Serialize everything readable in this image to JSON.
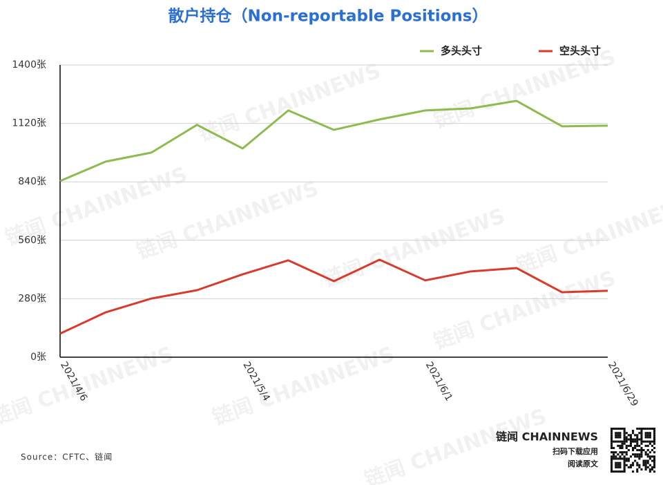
{
  "chart_data": {
    "type": "line",
    "title": "散户持仓（Non-reportable Positions）",
    "categories": [
      "2021/4/6",
      null,
      null,
      null,
      "2021/5/4",
      null,
      null,
      null,
      "2021/6/1",
      null,
      null,
      null,
      "2021/6/29"
    ],
    "series": [
      {
        "name": "多头头寸",
        "color": "#8dbb4f",
        "values": [
          844,
          937,
          980,
          1113,
          1000,
          1182,
          1089,
          1139,
          1182,
          1192,
          1228,
          1106,
          1109
        ]
      },
      {
        "name": "空头头寸",
        "color": "#d93a2b",
        "values": [
          113,
          215,
          281,
          321,
          397,
          464,
          364,
          467,
          368,
          411,
          427,
          311,
          318
        ]
      }
    ],
    "ylim": [
      0,
      1400
    ],
    "yticks": [
      {
        "value": 0,
        "label": "0张"
      },
      {
        "value": 280,
        "label": "280张"
      },
      {
        "value": 560,
        "label": "560张"
      },
      {
        "value": 840,
        "label": "840张"
      },
      {
        "value": 1120,
        "label": "1120张"
      },
      {
        "value": 1400,
        "label": "1400张"
      }
    ],
    "grid": true,
    "legend": "top-right",
    "source": "Source：CFTC、链闻",
    "brand": "链闻 CHAINNEWS",
    "brand_lines": [
      "扫码下载应用",
      "阅读原文"
    ],
    "watermark": "链闻 CHAINNEWS"
  }
}
